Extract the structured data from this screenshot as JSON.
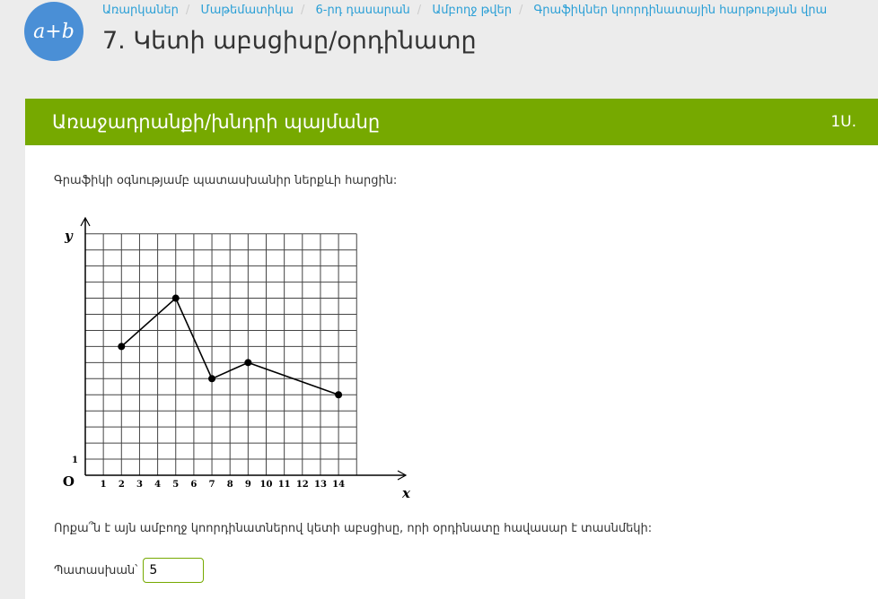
{
  "logo": {
    "text": "a+b"
  },
  "breadcrumb": [
    "Առարկաներ",
    "Մաթեմատիկա",
    "6-րդ դասարան",
    "Ամբողջ թվեր",
    "Գրաֆիկներ կոորդինատային հարթության վրա"
  ],
  "page_title": "7. Կետի աբսցիսը/օրդինատը",
  "card": {
    "header": "Առաջադրանքի/խնդրի պայմանը",
    "points": "1Ս."
  },
  "question_intro": "Գրաֆիկի օգնությամբ պատասխանիր ներքևի հարցին:",
  "question": "Որքա՞ն է այն ամբողջ կոորդինատներով կետի աբսցիսը, որի օրդինատը հավասար է տասնմեկի:",
  "answer": {
    "label": "Պատասխան՝",
    "value": "5"
  },
  "colors": {
    "header_green": "#76a900",
    "logo_blue": "#4a8fd6",
    "link_blue": "#2a9fd6"
  },
  "chart_data": {
    "type": "line",
    "xlabel": "x",
    "ylabel": "y",
    "origin_label": "O",
    "xlim": [
      0,
      15
    ],
    "ylim": [
      0,
      15
    ],
    "grid": true,
    "x_ticks": [
      "1",
      "2",
      "3",
      "4",
      "5",
      "6",
      "7",
      "8",
      "9",
      "10",
      "11",
      "12",
      "13",
      "14"
    ],
    "y_ticks": [
      "1"
    ],
    "points": [
      [
        2,
        8
      ],
      [
        5,
        11
      ],
      [
        7,
        6
      ],
      [
        9,
        7
      ],
      [
        14,
        5
      ]
    ]
  }
}
